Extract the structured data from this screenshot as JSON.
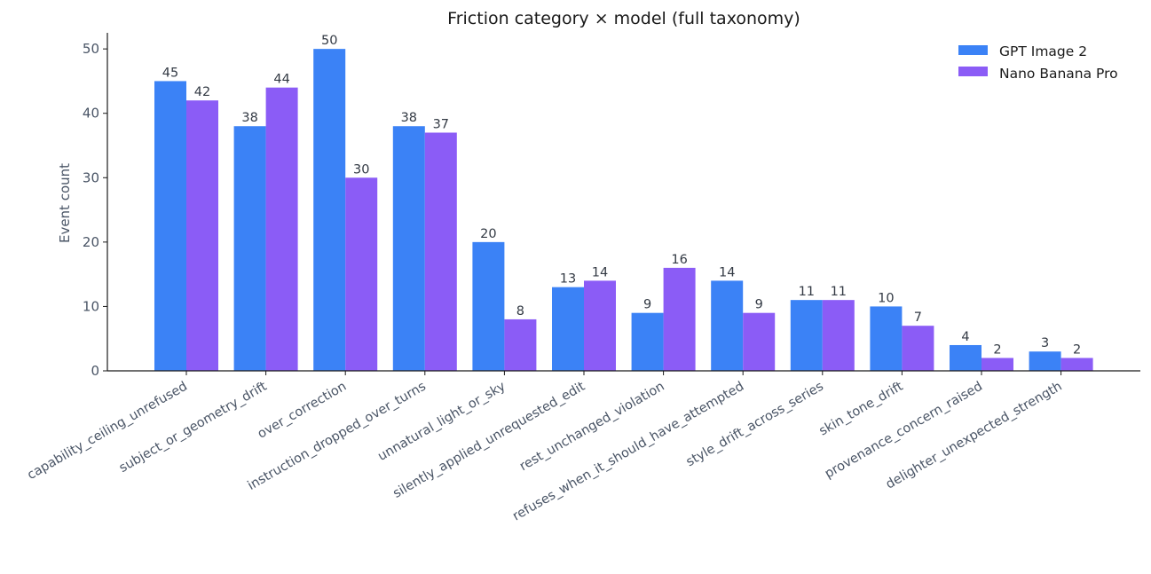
{
  "chart_data": {
    "type": "bar",
    "title": "Friction category × model (full taxonomy)",
    "xlabel": "",
    "ylabel": "Event count",
    "ylim": [
      0,
      52.5
    ],
    "yticks": [
      0,
      10,
      20,
      30,
      40,
      50
    ],
    "grid": false,
    "legend_position": "top-right",
    "categories": [
      "capability_ceiling_unrefused",
      "subject_or_geometry_drift",
      "over_correction",
      "instruction_dropped_over_turns",
      "unnatural_light_or_sky",
      "silently_applied_unrequested_edit",
      "rest_unchanged_violation",
      "refuses_when_it_should_have_attempted",
      "style_drift_across_series",
      "skin_tone_drift",
      "provenance_concern_raised",
      "delighter_unexpected_strength"
    ],
    "series": [
      {
        "name": "GPT Image 2",
        "color": "#3b82f6",
        "values": [
          45,
          38,
          50,
          38,
          20,
          13,
          9,
          14,
          11,
          10,
          4,
          3
        ]
      },
      {
        "name": "Nano Banana Pro",
        "color": "#8b5cf6",
        "values": [
          42,
          44,
          30,
          37,
          8,
          14,
          16,
          9,
          11,
          7,
          2,
          2
        ]
      }
    ]
  }
}
